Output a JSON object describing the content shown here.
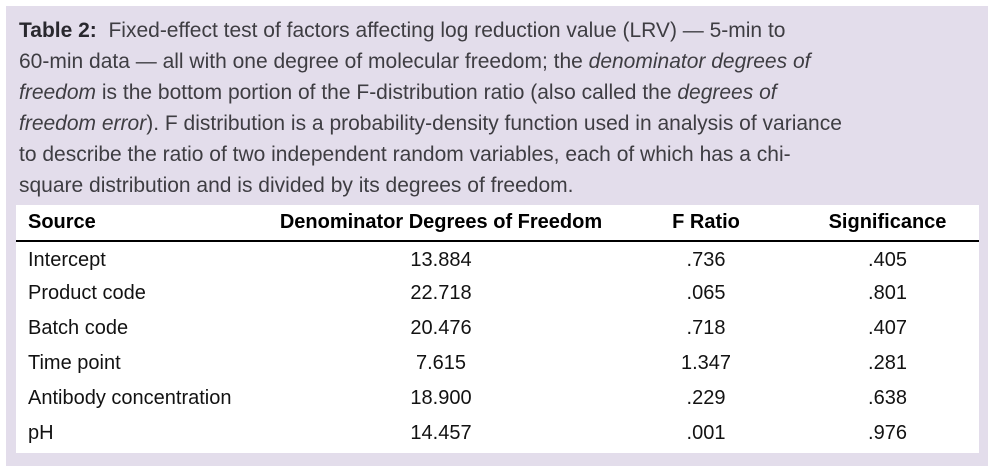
{
  "colors": {
    "caption_background": "#e3ddeb",
    "panel_background": "#ffffff",
    "caption_text": "#3e3d42",
    "table_text": "#121212",
    "header_rule": "#000000"
  },
  "caption": {
    "label": "Table 2:",
    "full_text": "Table 2: Fixed-effect test of factors affecting log reduction value (LRV) — 5-min to 60-min data — all with one degree of molecular freedom; the denominator degrees of freedom is the bottom portion of the F-distribution ratio (also called the degrees of freedom error). F distribution is a probability-density function used in analysis of variance to describe the ratio of two independent random variables, each of which has a chi-square distribution and is divided by its degrees of freedom.",
    "lines": [
      [
        {
          "t": "Table 2:",
          "b": true
        },
        {
          "t": "  Fixed-effect test of factors affecting log reduction value (LRV) — 5-min to"
        }
      ],
      [
        {
          "t": "60-min data — all with one degree of molecular freedom; the "
        },
        {
          "t": "denominator degrees of",
          "i": true
        }
      ],
      [
        {
          "t": "freedom",
          "i": true
        },
        {
          "t": " is the bottom portion of the F-distribution ratio (also called the "
        },
        {
          "t": "degrees of",
          "i": true
        }
      ],
      [
        {
          "t": "freedom error",
          "i": true
        },
        {
          "t": "). F distribution is a probability-density function used in analysis of variance"
        }
      ],
      [
        {
          "t": "to describe the ratio of two independent random variables, each of which has a chi-"
        }
      ],
      [
        {
          "t": "square distribution and is divided by its degrees of freedom."
        }
      ]
    ]
  },
  "table": {
    "columns": [
      "Source",
      "Denominator Degrees of Freedom",
      "F Ratio",
      "Significance"
    ],
    "rows": [
      {
        "source": "Intercept",
        "ddof": "13.884",
        "f_ratio": ".736",
        "significance": ".405"
      },
      {
        "source": "Product code",
        "ddof": "22.718",
        "f_ratio": ".065",
        "significance": ".801"
      },
      {
        "source": "Batch code",
        "ddof": "20.476",
        "f_ratio": ".718",
        "significance": ".407"
      },
      {
        "source": "Time point",
        "ddof": "7.615",
        "f_ratio": "1.347",
        "significance": ".281"
      },
      {
        "source": "Antibody concentration",
        "ddof": "18.900",
        "f_ratio": ".229",
        "significance": ".638"
      },
      {
        "source": "pH",
        "ddof": "14.457",
        "f_ratio": ".001",
        "significance": ".976"
      }
    ]
  },
  "chart_data": {
    "type": "table",
    "title": "Table 2: Fixed-effect test of factors affecting log reduction value (LRV)",
    "columns": [
      "Source",
      "Denominator Degrees of Freedom",
      "F Ratio",
      "Significance"
    ],
    "rows": [
      [
        "Intercept",
        13.884,
        0.736,
        0.405
      ],
      [
        "Product code",
        22.718,
        0.065,
        0.801
      ],
      [
        "Batch code",
        20.476,
        0.718,
        0.407
      ],
      [
        "Time point",
        7.615,
        1.347,
        0.281
      ],
      [
        "Antibody concentration",
        18.9,
        0.229,
        0.638
      ],
      [
        "pH",
        14.457,
        0.001,
        0.976
      ]
    ]
  }
}
